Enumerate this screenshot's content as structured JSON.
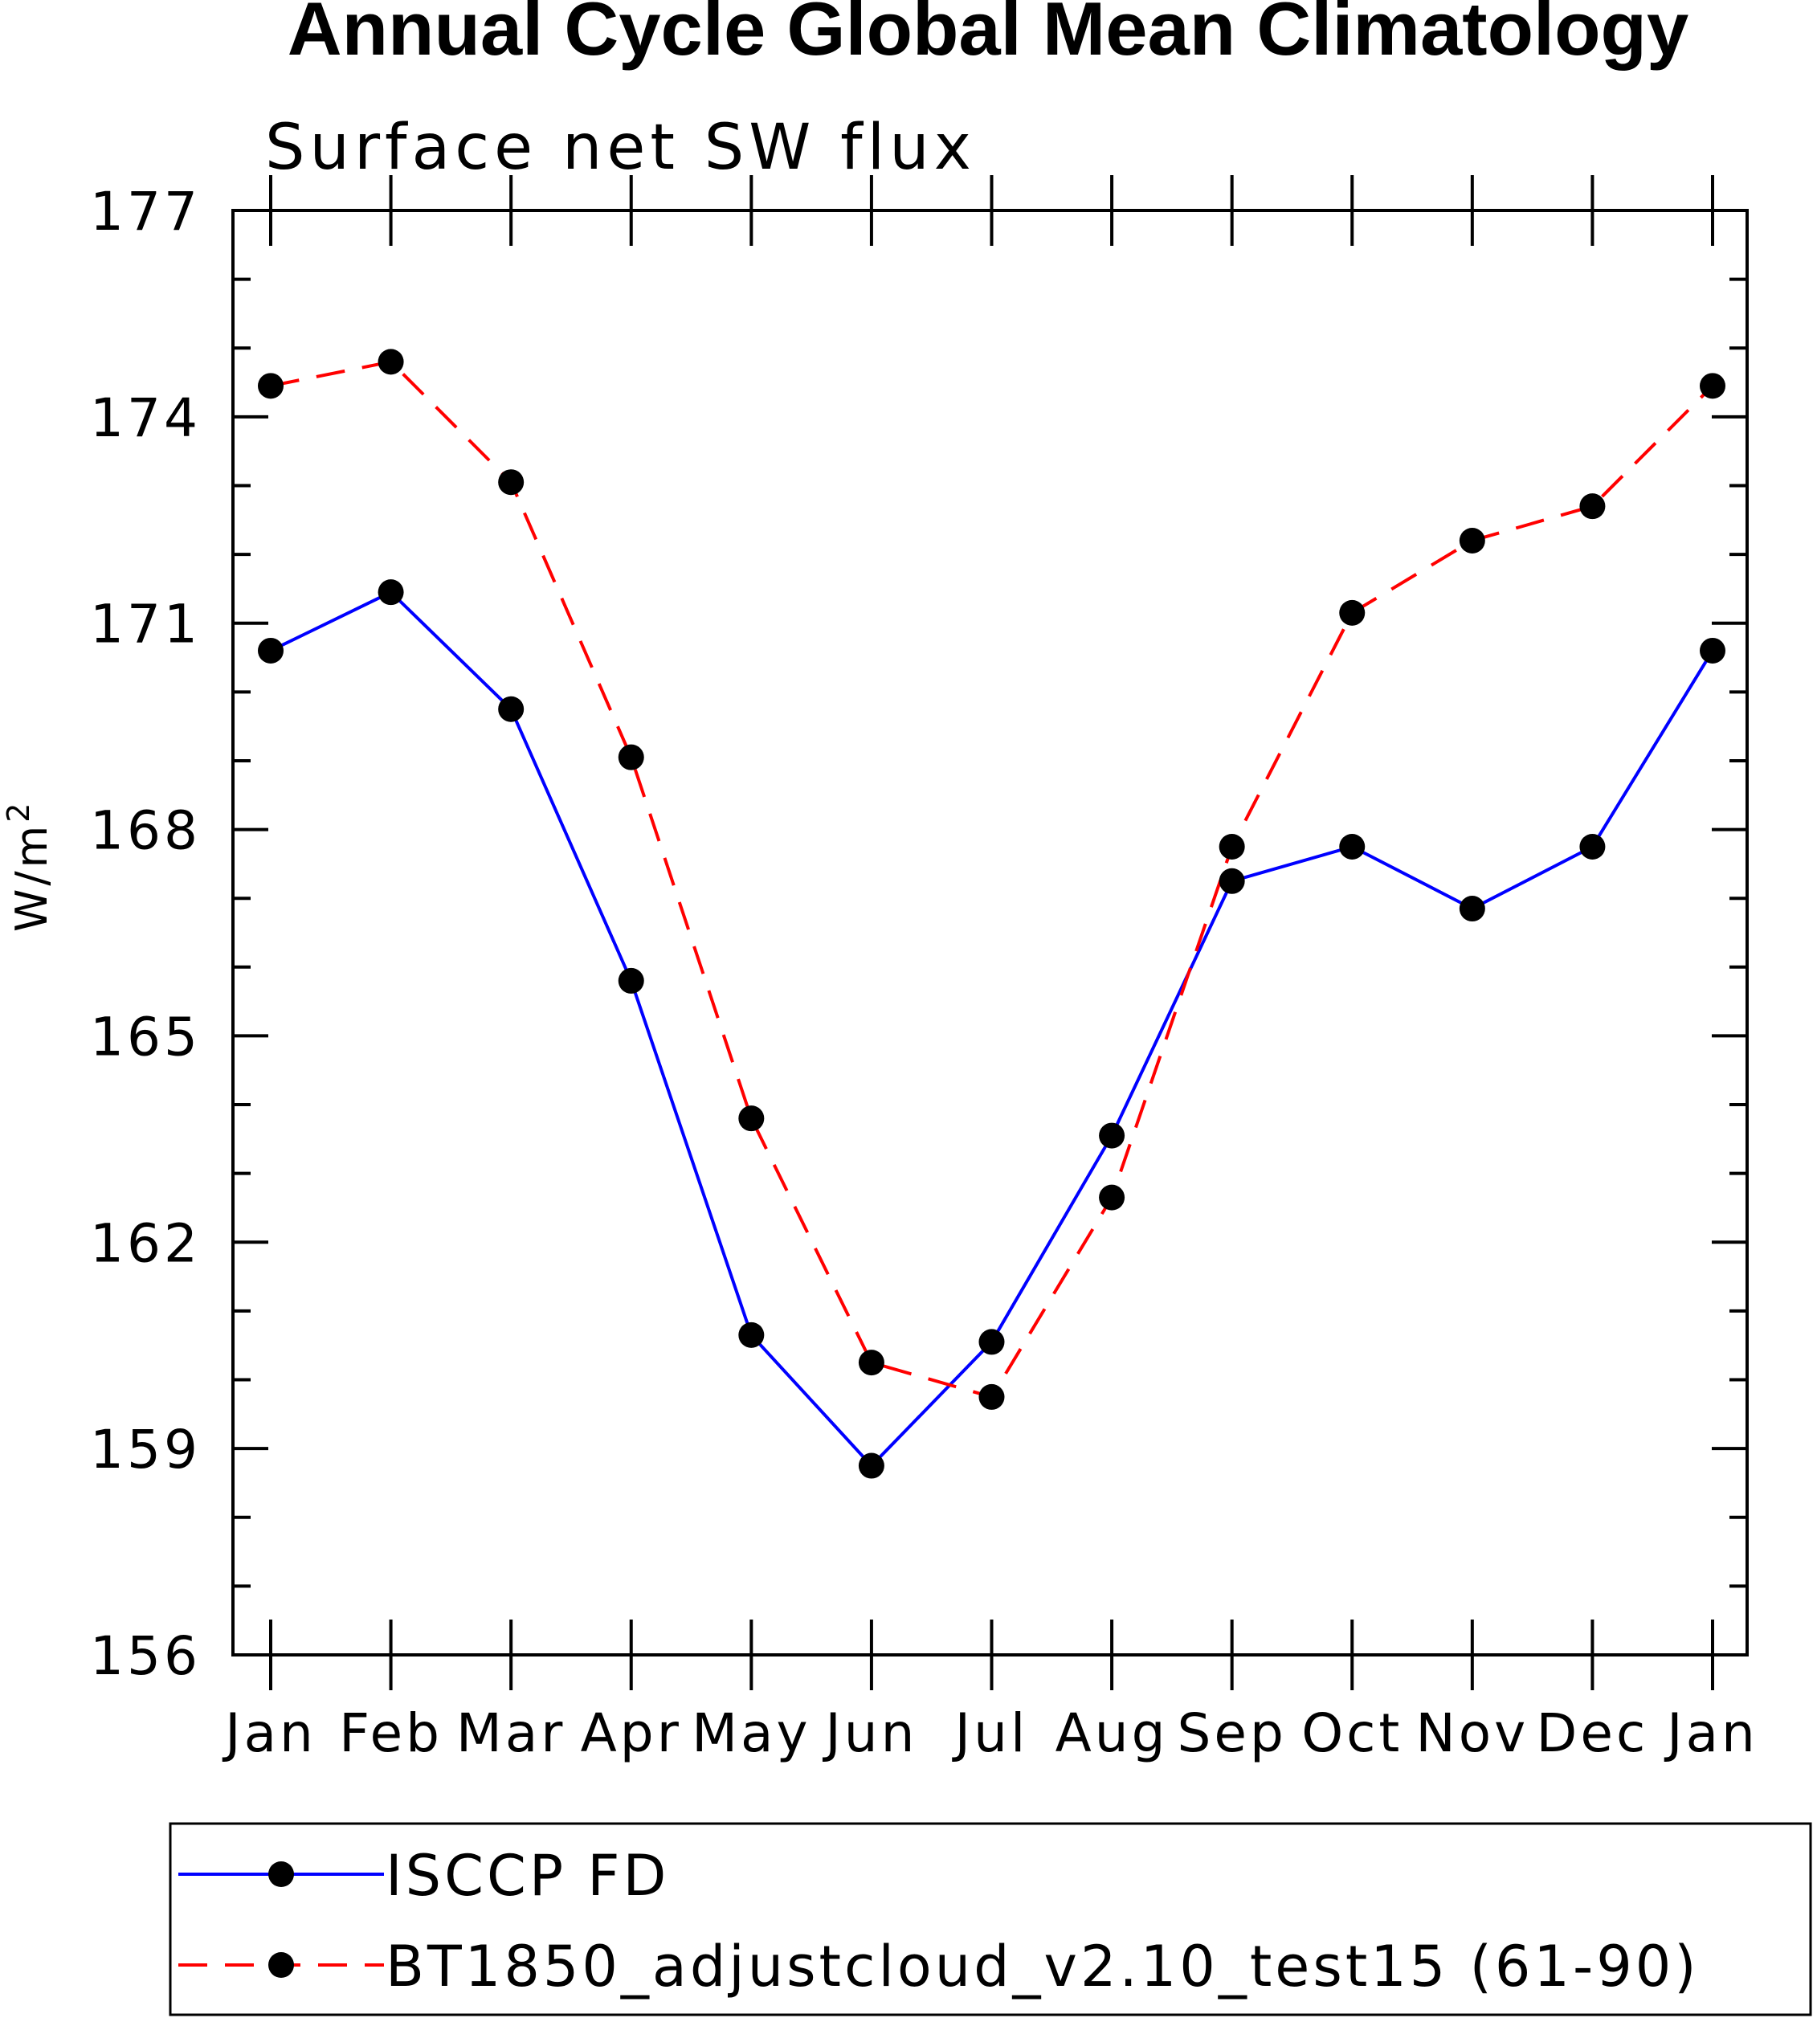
{
  "chart_data": {
    "type": "line",
    "title": "Annual Cycle Global Mean Climatology",
    "subtitle": "Surface net SW flux",
    "ylabel": "W/m",
    "ylabel_superscript": "2",
    "categories": [
      "Jan",
      "Feb",
      "Mar",
      "Apr",
      "May",
      "Jun",
      "Jul",
      "Aug",
      "Sep",
      "Oct",
      "Nov",
      "Dec",
      "Jan"
    ],
    "ylim": [
      156,
      177
    ],
    "yticks": [
      "156",
      "159",
      "162",
      "165",
      "168",
      "171",
      "174",
      "177"
    ],
    "series": [
      {
        "name": "ISCCP FD",
        "color": "#0000ff",
        "style": "solid",
        "marker": "filled-circle",
        "values": [
          170.6,
          171.45,
          169.75,
          165.8,
          160.65,
          158.75,
          160.55,
          163.55,
          167.25,
          167.75,
          166.85,
          167.75,
          170.6
        ]
      },
      {
        "name": "BT1850_adjustcloud_v2.10_test15 (61-90)",
        "color": "#ff0000",
        "style": "dashed",
        "marker": "filled-circle",
        "values": [
          174.45,
          174.8,
          173.05,
          169.05,
          163.8,
          160.25,
          159.75,
          162.65,
          167.75,
          171.15,
          172.2,
          172.7,
          174.45
        ]
      }
    ],
    "legend_position": "bottom"
  }
}
